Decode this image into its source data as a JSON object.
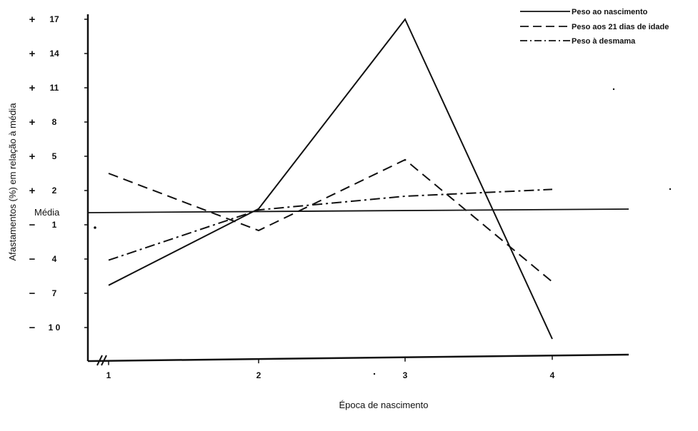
{
  "chart_data": {
    "type": "line",
    "xlabel": "Época de nascimento",
    "ylabel": "Afastamentos (%) em relação à média",
    "reference_line_label": "Média",
    "categories": [
      "1",
      "2",
      "3",
      "4"
    ],
    "y_ticks": [
      {
        "value": 17,
        "sign": "+",
        "label": "17"
      },
      {
        "value": 14,
        "sign": "+",
        "label": "14"
      },
      {
        "value": 11,
        "sign": "+",
        "label": "11"
      },
      {
        "value": 8,
        "sign": "+",
        "label": "8"
      },
      {
        "value": 5,
        "sign": "+",
        "label": "5"
      },
      {
        "value": 2,
        "sign": "+",
        "label": "2"
      },
      {
        "value": -1,
        "sign": "−",
        "label": "1"
      },
      {
        "value": -4,
        "sign": "−",
        "label": "4"
      },
      {
        "value": -7,
        "sign": "−",
        "label": "7"
      },
      {
        "value": -10,
        "sign": "−",
        "label": "1 0"
      }
    ],
    "ylim": [
      -13,
      17.5
    ],
    "series": [
      {
        "name": "Peso ao nascimento",
        "style": "solid",
        "values": [
          -6.3,
          0.4,
          17.0,
          -11.0
        ]
      },
      {
        "name": "Peso aos 21 dias de idade",
        "style": "dashed",
        "values": [
          3.5,
          -1.5,
          4.7,
          -6.0
        ]
      },
      {
        "name": "Peso à desmama",
        "style": "dashdot",
        "values": [
          -4.1,
          0.3,
          1.5,
          2.1
        ]
      }
    ],
    "legend_position": "top-right",
    "grid": false
  },
  "colors": {
    "line": "#111111",
    "background": "#ffffff"
  }
}
